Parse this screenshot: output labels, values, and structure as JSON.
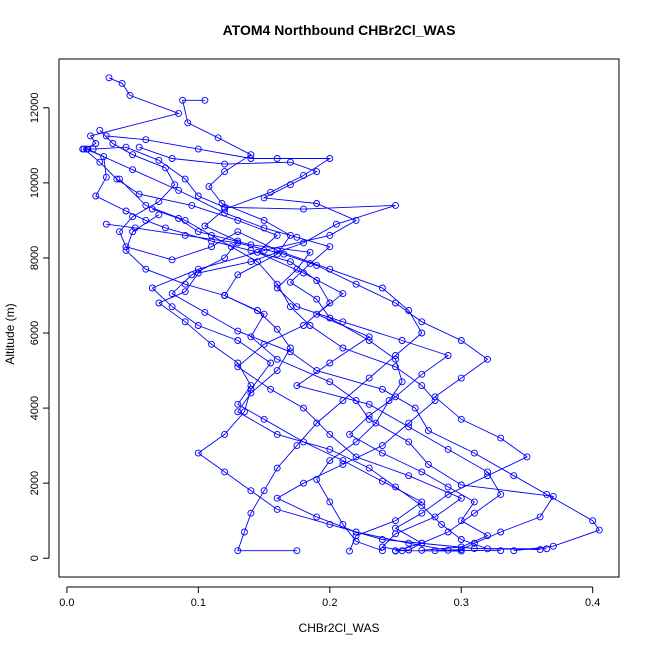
{
  "chart_data": {
    "type": "line",
    "title": "ATOM4 Northbound CHBr2Cl_WAS",
    "xlabel": "CHBr2Cl_WAS",
    "ylabel": "Altitude (m)",
    "xlim": [
      -0.006,
      0.42
    ],
    "ylim": [
      -500,
      13300
    ],
    "xticks": [
      0.0,
      0.1,
      0.2,
      0.3,
      0.4
    ],
    "xtick_labels": [
      "0.0",
      "0.1",
      "0.2",
      "0.3",
      "0.4"
    ],
    "yticks": [
      0,
      2000,
      4000,
      6000,
      8000,
      10000,
      12000
    ],
    "ytick_labels": [
      "0",
      "2000",
      "4000",
      "6000",
      "8000",
      "10000",
      "12000"
    ],
    "grid": false,
    "legend": "none",
    "marker": "open-circle",
    "color": "#0000ff",
    "series": [
      {
        "points": [
          [
            0.032,
            12800
          ],
          [
            0.042,
            12650
          ],
          [
            0.048,
            12330
          ],
          [
            0.085,
            11850
          ],
          [
            0.018,
            11250
          ],
          [
            0.022,
            11050
          ],
          [
            0.013,
            10900
          ],
          [
            0.025,
            10550
          ],
          [
            0.038,
            10100
          ],
          [
            0.055,
            9700
          ],
          [
            0.095,
            9400
          ],
          [
            0.13,
            9000
          ],
          [
            0.16,
            8600
          ],
          [
            0.145,
            8150
          ],
          [
            0.18,
            7600
          ],
          [
            0.21,
            7050
          ],
          [
            0.19,
            6500
          ],
          [
            0.23,
            5900
          ],
          [
            0.2,
            5200
          ],
          [
            0.175,
            4600
          ],
          [
            0.23,
            4100
          ],
          [
            0.26,
            3500
          ],
          [
            0.29,
            2900
          ],
          [
            0.32,
            2300
          ],
          [
            0.33,
            1700
          ],
          [
            0.31,
            1200
          ],
          [
            0.29,
            700
          ],
          [
            0.27,
            400
          ],
          [
            0.26,
            220
          ],
          [
            0.25,
            190
          ]
        ]
      },
      {
        "points": [
          [
            0.105,
            12200
          ],
          [
            0.088,
            12200
          ],
          [
            0.092,
            11600
          ],
          [
            0.115,
            11200
          ],
          [
            0.14,
            10750
          ],
          [
            0.12,
            10300
          ],
          [
            0.108,
            9900
          ],
          [
            0.118,
            9450
          ],
          [
            0.15,
            9000
          ],
          [
            0.17,
            8600
          ],
          [
            0.16,
            8100
          ],
          [
            0.13,
            7550
          ],
          [
            0.12,
            7000
          ],
          [
            0.15,
            6500
          ],
          [
            0.14,
            5900
          ],
          [
            0.16,
            5300
          ],
          [
            0.2,
            4700
          ],
          [
            0.22,
            4200
          ],
          [
            0.23,
            3700
          ],
          [
            0.26,
            3100
          ],
          [
            0.275,
            2500
          ],
          [
            0.3,
            1950
          ],
          [
            0.37,
            1650
          ],
          [
            0.36,
            1100
          ],
          [
            0.33,
            700
          ],
          [
            0.31,
            400
          ],
          [
            0.3,
            230
          ],
          [
            0.28,
            200
          ]
        ]
      },
      {
        "points": [
          [
            0.012,
            10900
          ],
          [
            0.02,
            10900
          ],
          [
            0.045,
            10950
          ],
          [
            0.07,
            10600
          ],
          [
            0.09,
            10100
          ],
          [
            0.1,
            9650
          ],
          [
            0.12,
            9350
          ],
          [
            0.18,
            9300
          ],
          [
            0.25,
            9400
          ],
          [
            0.205,
            8900
          ],
          [
            0.18,
            8400
          ],
          [
            0.14,
            7900
          ],
          [
            0.1,
            7600
          ],
          [
            0.09,
            7100
          ],
          [
            0.07,
            6800
          ],
          [
            0.09,
            6300
          ],
          [
            0.11,
            5700
          ],
          [
            0.13,
            5200
          ],
          [
            0.14,
            4600
          ],
          [
            0.13,
            4100
          ],
          [
            0.15,
            3700
          ],
          [
            0.18,
            3100
          ],
          [
            0.21,
            2600
          ],
          [
            0.24,
            2050
          ],
          [
            0.27,
            1500
          ],
          [
            0.25,
            1000
          ],
          [
            0.22,
            600
          ],
          [
            0.215,
            190
          ]
        ]
      },
      {
        "points": [
          [
            0.055,
            10950
          ],
          [
            0.08,
            10650
          ],
          [
            0.12,
            10500
          ],
          [
            0.17,
            10550
          ],
          [
            0.19,
            10300
          ],
          [
            0.17,
            9950
          ],
          [
            0.15,
            9600
          ],
          [
            0.19,
            9450
          ],
          [
            0.22,
            9000
          ],
          [
            0.2,
            8600
          ],
          [
            0.15,
            8200
          ],
          [
            0.1,
            7700
          ],
          [
            0.065,
            7200
          ],
          [
            0.08,
            6700
          ],
          [
            0.1,
            6200
          ],
          [
            0.13,
            5800
          ],
          [
            0.155,
            5200
          ],
          [
            0.14,
            4500
          ],
          [
            0.135,
            3900
          ],
          [
            0.12,
            3300
          ],
          [
            0.1,
            2800
          ],
          [
            0.12,
            2300
          ],
          [
            0.14,
            1800
          ],
          [
            0.16,
            1300
          ],
          [
            0.2,
            900
          ],
          [
            0.24,
            500
          ],
          [
            0.31,
            260
          ],
          [
            0.365,
            250
          ]
        ]
      },
      {
        "points": [
          [
            0.025,
            11400
          ],
          [
            0.035,
            11050
          ],
          [
            0.05,
            10750
          ],
          [
            0.075,
            10400
          ],
          [
            0.082,
            9950
          ],
          [
            0.07,
            9500
          ],
          [
            0.05,
            9100
          ],
          [
            0.04,
            8700
          ],
          [
            0.045,
            8300
          ],
          [
            0.08,
            7950
          ],
          [
            0.11,
            8300
          ],
          [
            0.13,
            8700
          ],
          [
            0.16,
            8200
          ],
          [
            0.2,
            7700
          ],
          [
            0.24,
            7200
          ],
          [
            0.26,
            6600
          ],
          [
            0.27,
            6000
          ],
          [
            0.25,
            5400
          ],
          [
            0.23,
            4800
          ],
          [
            0.21,
            4200
          ],
          [
            0.19,
            3600
          ],
          [
            0.175,
            3000
          ],
          [
            0.16,
            2400
          ],
          [
            0.15,
            1800
          ],
          [
            0.14,
            1200
          ],
          [
            0.135,
            700
          ],
          [
            0.13,
            200
          ],
          [
            0.175,
            200
          ]
        ]
      },
      {
        "points": [
          [
            0.03,
            11250
          ],
          [
            0.06,
            11150
          ],
          [
            0.1,
            10900
          ],
          [
            0.14,
            10650
          ],
          [
            0.16,
            10650
          ],
          [
            0.2,
            10650
          ],
          [
            0.18,
            10200
          ],
          [
            0.155,
            9750
          ],
          [
            0.12,
            9300
          ],
          [
            0.105,
            8850
          ],
          [
            0.13,
            8450
          ],
          [
            0.12,
            8000
          ],
          [
            0.095,
            7550
          ],
          [
            0.08,
            7050
          ],
          [
            0.105,
            6550
          ],
          [
            0.13,
            6050
          ],
          [
            0.17,
            5500
          ],
          [
            0.19,
            5000
          ],
          [
            0.24,
            4500
          ],
          [
            0.265,
            4000
          ],
          [
            0.275,
            3400
          ],
          [
            0.31,
            2800
          ],
          [
            0.34,
            2200
          ],
          [
            0.365,
            1700
          ],
          [
            0.4,
            1000
          ],
          [
            0.405,
            750
          ],
          [
            0.37,
            320
          ],
          [
            0.34,
            200
          ]
        ]
      },
      {
        "points": [
          [
            0.016,
            10900
          ],
          [
            0.028,
            10700
          ],
          [
            0.03,
            10150
          ],
          [
            0.022,
            9650
          ],
          [
            0.045,
            9250
          ],
          [
            0.06,
            9000
          ],
          [
            0.075,
            8800
          ],
          [
            0.11,
            8450
          ],
          [
            0.14,
            8200
          ],
          [
            0.17,
            7900
          ],
          [
            0.19,
            7400
          ],
          [
            0.2,
            6800
          ],
          [
            0.18,
            6200
          ],
          [
            0.15,
            5700
          ],
          [
            0.13,
            5100
          ],
          [
            0.155,
            4500
          ],
          [
            0.18,
            4000
          ],
          [
            0.2,
            3300
          ],
          [
            0.22,
            2700
          ],
          [
            0.26,
            2200
          ],
          [
            0.3,
            1600
          ],
          [
            0.28,
            1100
          ],
          [
            0.25,
            650
          ],
          [
            0.24,
            300
          ],
          [
            0.255,
            200
          ],
          [
            0.3,
            190
          ]
        ]
      },
      {
        "points": [
          [
            0.04,
            10100
          ],
          [
            0.06,
            9400
          ],
          [
            0.09,
            9000
          ],
          [
            0.11,
            8600
          ],
          [
            0.125,
            8300
          ],
          [
            0.145,
            7900
          ],
          [
            0.16,
            7300
          ],
          [
            0.17,
            6700
          ],
          [
            0.185,
            6200
          ],
          [
            0.21,
            5600
          ],
          [
            0.25,
            5100
          ],
          [
            0.27,
            4600
          ],
          [
            0.28,
            4200
          ],
          [
            0.26,
            3600
          ],
          [
            0.24,
            3000
          ],
          [
            0.21,
            2500
          ],
          [
            0.18,
            2000
          ],
          [
            0.16,
            1600
          ],
          [
            0.19,
            1100
          ],
          [
            0.22,
            700
          ],
          [
            0.26,
            400
          ],
          [
            0.29,
            210
          ],
          [
            0.33,
            200
          ]
        ]
      },
      {
        "points": [
          [
            0.065,
            9300
          ],
          [
            0.085,
            9050
          ],
          [
            0.1,
            8700
          ],
          [
            0.14,
            8350
          ],
          [
            0.185,
            8150
          ],
          [
            0.175,
            7700
          ],
          [
            0.16,
            7200
          ],
          [
            0.175,
            6700
          ],
          [
            0.21,
            6300
          ],
          [
            0.255,
            5800
          ],
          [
            0.29,
            5400
          ],
          [
            0.27,
            4900
          ],
          [
            0.25,
            4300
          ],
          [
            0.23,
            3800
          ],
          [
            0.215,
            3300
          ],
          [
            0.24,
            2800
          ],
          [
            0.27,
            2300
          ],
          [
            0.29,
            1900
          ],
          [
            0.31,
            1500
          ],
          [
            0.3,
            1000
          ],
          [
            0.32,
            600
          ],
          [
            0.3,
            300
          ],
          [
            0.27,
            210
          ]
        ]
      },
      {
        "points": [
          [
            0.07,
            9150
          ],
          [
            0.05,
            8700
          ],
          [
            0.045,
            8200
          ],
          [
            0.06,
            7700
          ],
          [
            0.09,
            7300
          ],
          [
            0.12,
            7000
          ],
          [
            0.145,
            6600
          ],
          [
            0.16,
            6100
          ],
          [
            0.17,
            5600
          ],
          [
            0.16,
            5000
          ],
          [
            0.14,
            4400
          ],
          [
            0.13,
            3900
          ],
          [
            0.16,
            3300
          ],
          [
            0.2,
            2900
          ],
          [
            0.23,
            2400
          ],
          [
            0.25,
            1900
          ],
          [
            0.27,
            1400
          ],
          [
            0.285,
            900
          ],
          [
            0.3,
            500
          ],
          [
            0.32,
            250
          ],
          [
            0.36,
            230
          ]
        ]
      },
      {
        "points": [
          [
            0.03,
            8900
          ],
          [
            0.052,
            8800
          ],
          [
            0.09,
            8600
          ],
          [
            0.13,
            8400
          ],
          [
            0.165,
            8100
          ],
          [
            0.19,
            7800
          ],
          [
            0.22,
            7300
          ],
          [
            0.25,
            6800
          ],
          [
            0.27,
            6300
          ],
          [
            0.3,
            5800
          ],
          [
            0.32,
            5300
          ],
          [
            0.3,
            4800
          ],
          [
            0.28,
            4300
          ],
          [
            0.3,
            3700
          ],
          [
            0.33,
            3200
          ],
          [
            0.35,
            2700
          ],
          [
            0.32,
            2200
          ],
          [
            0.29,
            1700
          ],
          [
            0.27,
            1200
          ],
          [
            0.25,
            800
          ],
          [
            0.27,
            400
          ],
          [
            0.25,
            200
          ]
        ]
      },
      {
        "points": [
          [
            0.015,
            10900
          ],
          [
            0.05,
            10350
          ],
          [
            0.085,
            9800
          ],
          [
            0.12,
            9200
          ],
          [
            0.15,
            8800
          ],
          [
            0.175,
            8550
          ],
          [
            0.2,
            8300
          ],
          [
            0.185,
            7850
          ],
          [
            0.17,
            7350
          ],
          [
            0.19,
            6900
          ],
          [
            0.2,
            6400
          ],
          [
            0.23,
            5800
          ],
          [
            0.25,
            5300
          ],
          [
            0.255,
            4700
          ],
          [
            0.245,
            4200
          ],
          [
            0.235,
            3600
          ],
          [
            0.22,
            3100
          ],
          [
            0.2,
            2600
          ],
          [
            0.19,
            2100
          ],
          [
            0.2,
            1500
          ],
          [
            0.21,
            900
          ],
          [
            0.22,
            450
          ],
          [
            0.24,
            200
          ]
        ]
      }
    ]
  }
}
